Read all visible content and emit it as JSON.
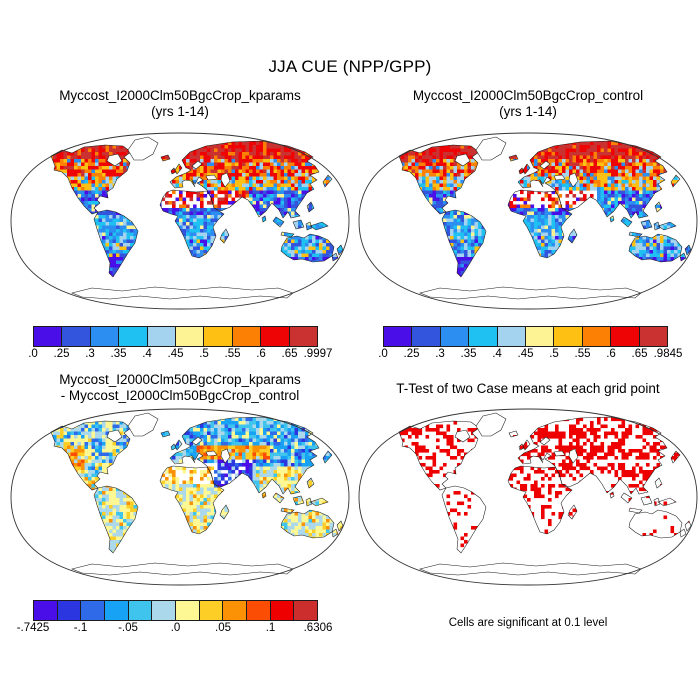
{
  "title": "JJA CUE (NPP/GPP)",
  "panels": {
    "kparams": {
      "line1": "Myccost_I2000Clm50BgcCrop_kparams",
      "line2": "(yrs 1-14)"
    },
    "control": {
      "line1": "Myccost_I2000Clm50BgcCrop_control",
      "line2": "(yrs 1-14)"
    },
    "diff": {
      "line1": "Myccost_I2000Clm50BgcCrop_kparams",
      "line2": "- Myccost_I2000Clm50BgcCrop_control"
    },
    "ttest": {
      "line1": "T-Test of two Case means at each grid point",
      "caption": "Cells are significant at 0.1 level"
    }
  },
  "colorbars": {
    "kparams": {
      "ticks": [
        ".0",
        ".25",
        ".3",
        ".35",
        ".4",
        ".45",
        ".5",
        ".55",
        ".6",
        ".65",
        ".9997"
      ],
      "tick_positions": [
        0,
        1,
        2,
        3,
        4,
        5,
        6,
        7,
        8,
        9,
        10
      ],
      "colors": [
        "#4a0fe8",
        "#3355dd",
        "#2b8ef0",
        "#1fc1f2",
        "#a3d3ee",
        "#fdf394",
        "#fdc013",
        "#fb8004",
        "#ee0404",
        "#c93230"
      ]
    },
    "control": {
      "ticks": [
        ".0",
        ".25",
        ".3",
        ".35",
        ".4",
        ".45",
        ".5",
        ".55",
        ".6",
        ".65",
        ".9845"
      ],
      "tick_positions": [
        0,
        1,
        2,
        3,
        4,
        5,
        6,
        7,
        8,
        9,
        10
      ],
      "colors": [
        "#4a0fe8",
        "#3355dd",
        "#2b8ef0",
        "#1fc1f2",
        "#a3d3ee",
        "#fdf394",
        "#fdc013",
        "#fb8004",
        "#ee0404",
        "#c93230"
      ]
    },
    "diff": {
      "ticks": [
        "-.7425",
        "-.1",
        "-.05",
        ".0",
        ".05",
        ".1",
        ".6306"
      ],
      "tick_positions": [
        0,
        2,
        4,
        6,
        8,
        10,
        12
      ],
      "colors": [
        "#4a0fe8",
        "#2b35e0",
        "#2f6ae8",
        "#18a2f5",
        "#3fc4ee",
        "#abd8ea",
        "#fdf894",
        "#fdcf26",
        "#fb9104",
        "#fb4d04",
        "#ee0000",
        "#cc2d2d"
      ]
    }
  },
  "map": {
    "ocean_color": "#ffffff",
    "coast_color": "#1a1a1a",
    "outline_color": "#333333",
    "significant_color": "#ee0000"
  },
  "chart_data": [
    {
      "type": "heatmap",
      "title": "Myccost_I2000Clm50BgcCrop_kparams (yrs 1-14)",
      "variable": "JJA CUE (NPP/GPP)",
      "projection": "Robinson world map, ocean white, land colored by CUE",
      "scale_ticks": [
        ".0",
        ".25",
        ".3",
        ".35",
        ".4",
        ".45",
        ".5",
        ".55",
        ".6",
        ".65",
        ".9997"
      ],
      "scale_min": 0.0,
      "scale_max": 0.9997,
      "palette": [
        "#4a0fe8",
        "#3355dd",
        "#2b8ef0",
        "#1fc1f2",
        "#a3d3ee",
        "#fdf394",
        "#fdc013",
        "#fb8004",
        "#ee0404",
        "#c93230"
      ],
      "pattern": "high CUE (red/orange) in arctic and boreal latitudes; low CUE (blue/cyan) in tropics and Australia; Sahara and Arabia mostly missing data (white)"
    },
    {
      "type": "heatmap",
      "title": "Myccost_I2000Clm50BgcCrop_control (yrs 1-14)",
      "variable": "JJA CUE (NPP/GPP)",
      "projection": "Robinson world map, ocean white, land colored by CUE",
      "scale_ticks": [
        ".0",
        ".25",
        ".3",
        ".35",
        ".4",
        ".45",
        ".5",
        ".55",
        ".6",
        ".65",
        ".9845"
      ],
      "scale_min": 0.0,
      "scale_max": 0.9845,
      "palette": [
        "#4a0fe8",
        "#3355dd",
        "#2b8ef0",
        "#1fc1f2",
        "#a3d3ee",
        "#fdf394",
        "#fdc013",
        "#fb8004",
        "#ee0404",
        "#c93230"
      ],
      "pattern": "same spatial pattern as kparams case: red/orange high latitudes, blue tropics"
    },
    {
      "type": "heatmap",
      "title": "Myccost_I2000Clm50BgcCrop_kparams - Myccost_I2000Clm50BgcCrop_control",
      "variable": "difference of JJA CUE",
      "projection": "Robinson world map",
      "scale_ticks": [
        "-.7425",
        "-.1",
        "-.05",
        ".0",
        ".05",
        ".1",
        ".6306"
      ],
      "scale_min": -0.7425,
      "scale_max": 0.6306,
      "palette": [
        "#4a0fe8",
        "#2b35e0",
        "#2f6ae8",
        "#18a2f5",
        "#3fc4ee",
        "#abd8ea",
        "#fdf894",
        "#fdcf26",
        "#fb9104",
        "#fb4d04",
        "#ee0000",
        "#cc2d2d"
      ],
      "pattern": "blue (negative) across northern Eurasia and Europe, orange band over western Russia/Kazakhstan and western USA, pale yellow/light blue near-zero values in tropics and southern hemisphere, dark blue Middle East"
    },
    {
      "type": "heatmap",
      "title": "T-Test of two Case means at each grid point",
      "legend": "Cells are significant at 0.1 level",
      "cell_color": "#ee0000",
      "pattern": "red significant cells dense over Europe, Siberia, East Asia and North America; sparse over South America and Australia; ocean white, coastlines thin black"
    }
  ]
}
